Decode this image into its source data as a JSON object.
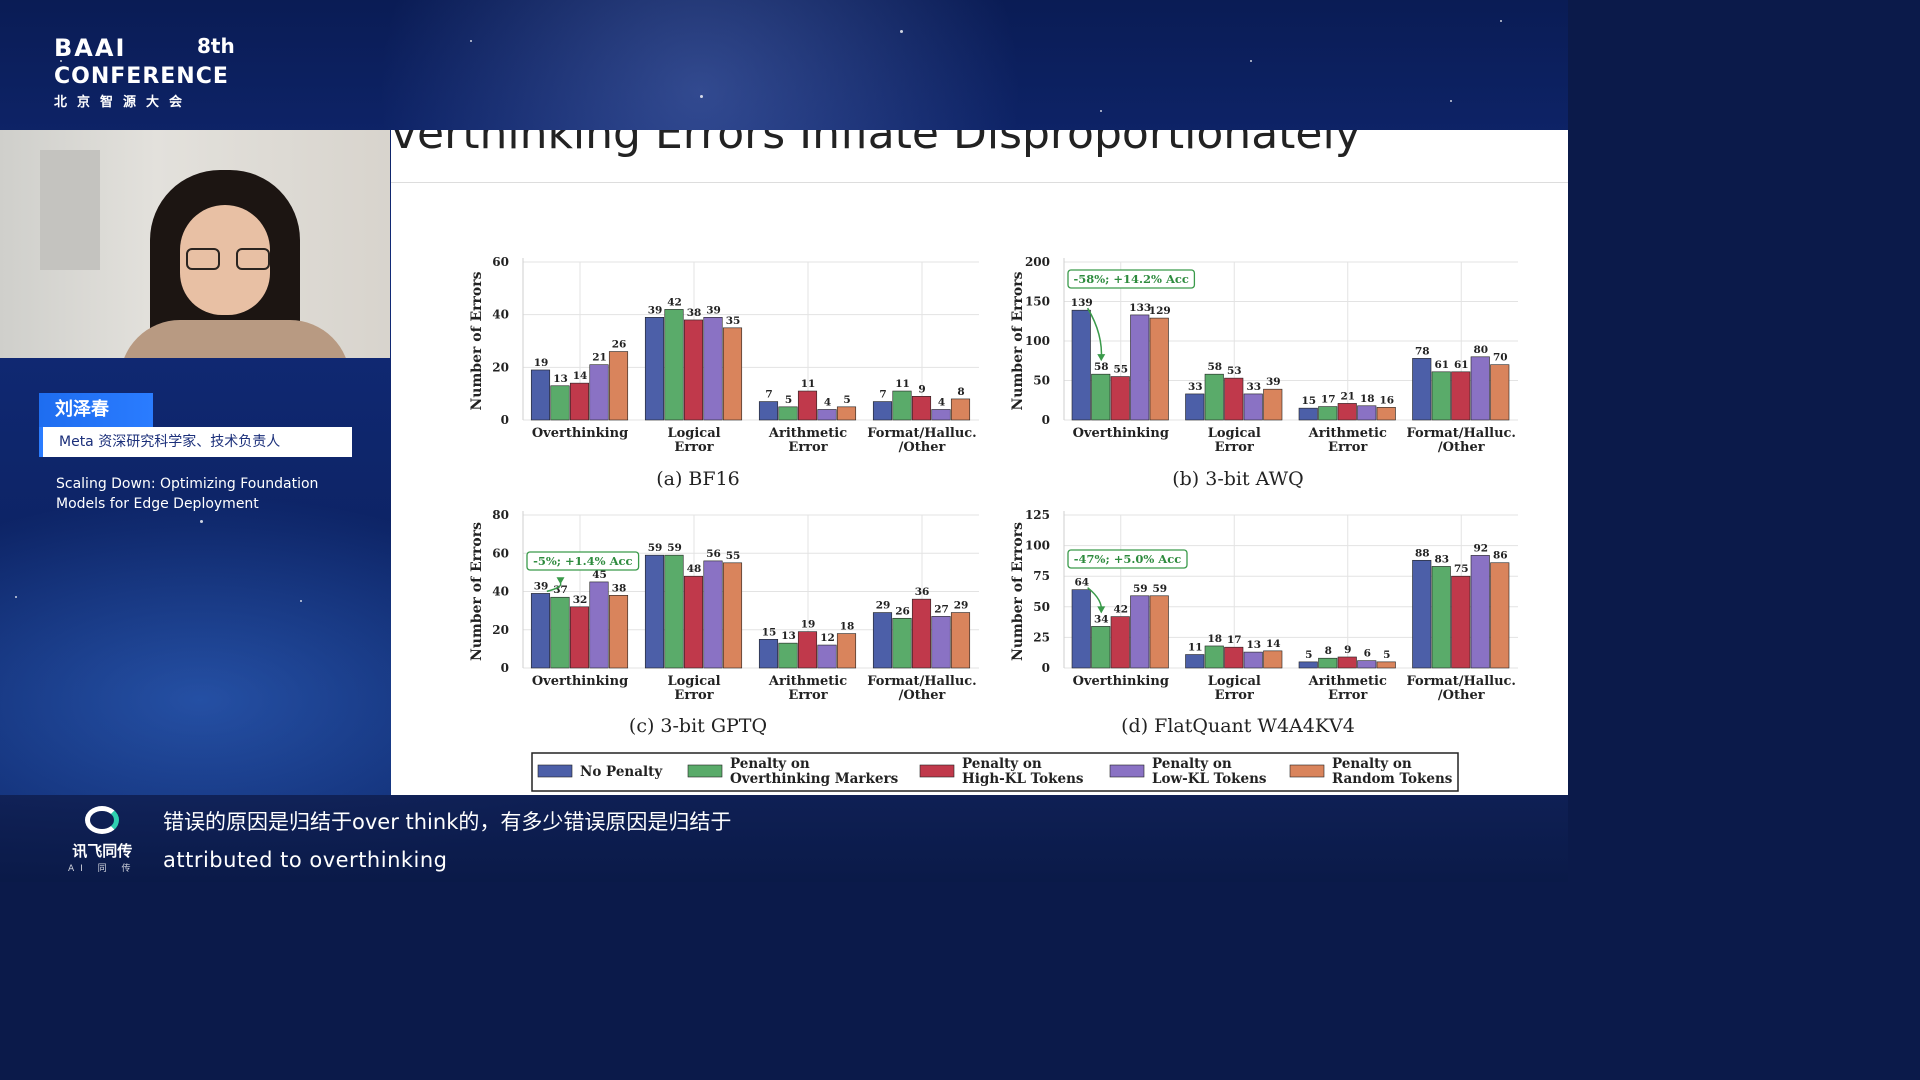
{
  "conference": {
    "brand": "BAAI",
    "edition": "8th",
    "name": "CONFERENCE",
    "cn": "北京智源大会"
  },
  "speaker": {
    "name": "刘泽春",
    "title": "Meta 资深研究科学家、技术负责人",
    "talk": "Scaling Down: Optimizing Foundation Models for Edge Deployment"
  },
  "slide": {
    "title": "verthinking Errors Inflate Disproportionately"
  },
  "subtitles": {
    "cn": "错误的原因是归结于over think的，有多少错误原因是归结于",
    "en": "attributed to overthinking"
  },
  "sub_logo": {
    "name": "讯飞同传",
    "tag": "AI 同 传"
  },
  "colors": {
    "no_penalty": "#4c5fa8",
    "overthinking_markers": "#5aab6a",
    "high_kl": "#c0394b",
    "low_kl": "#8a72c4",
    "random": "#d9845c"
  },
  "chart_data": [
    {
      "type": "bar",
      "caption": "(a)  BF16",
      "ylabel": "Number of Errors",
      "ylim": [
        0,
        60
      ],
      "yticks": [
        0,
        20,
        40,
        60
      ],
      "categories": [
        "Overthinking",
        "Logical\nError",
        "Arithmetic\nError",
        "Format/Halluc.\n/Other"
      ],
      "series": [
        {
          "name": "No Penalty",
          "values": [
            19,
            39,
            7,
            7
          ]
        },
        {
          "name": "Penalty on Overthinking Markers",
          "values": [
            13,
            42,
            5,
            11
          ]
        },
        {
          "name": "Penalty on High-KL Tokens",
          "values": [
            14,
            38,
            11,
            9
          ]
        },
        {
          "name": "Penalty on Low-KL Tokens",
          "values": [
            21,
            39,
            4,
            4
          ]
        },
        {
          "name": "Penalty on Random Tokens",
          "values": [
            26,
            35,
            5,
            8
          ]
        }
      ],
      "annotation": ""
    },
    {
      "type": "bar",
      "caption": "(b)  3-bit AWQ",
      "ylabel": "Number of Errors",
      "ylim": [
        0,
        200
      ],
      "yticks": [
        0,
        50,
        100,
        150,
        200
      ],
      "categories": [
        "Overthinking",
        "Logical\nError",
        "Arithmetic\nError",
        "Format/Halluc.\n/Other"
      ],
      "series": [
        {
          "name": "No Penalty",
          "values": [
            139,
            33,
            15,
            78
          ]
        },
        {
          "name": "Penalty on Overthinking Markers",
          "values": [
            58,
            58,
            17,
            61
          ]
        },
        {
          "name": "Penalty on High-KL Tokens",
          "values": [
            55,
            53,
            21,
            61
          ]
        },
        {
          "name": "Penalty on Low-KL Tokens",
          "values": [
            133,
            33,
            18,
            80
          ]
        },
        {
          "name": "Penalty on Random Tokens",
          "values": [
            129,
            39,
            16,
            70
          ]
        }
      ],
      "annotation": "-58%; +14.2% Acc"
    },
    {
      "type": "bar",
      "caption": "(c)  3-bit GPTQ",
      "ylabel": "Number of Errors",
      "ylim": [
        0,
        80
      ],
      "yticks": [
        0,
        20,
        40,
        60,
        80
      ],
      "categories": [
        "Overthinking",
        "Logical\nError",
        "Arithmetic\nError",
        "Format/Halluc.\n/Other"
      ],
      "series": [
        {
          "name": "No Penalty",
          "values": [
            39,
            59,
            15,
            29
          ]
        },
        {
          "name": "Penalty on Overthinking Markers",
          "values": [
            37,
            59,
            13,
            26
          ]
        },
        {
          "name": "Penalty on High-KL Tokens",
          "values": [
            32,
            48,
            19,
            36
          ]
        },
        {
          "name": "Penalty on Low-KL Tokens",
          "values": [
            45,
            56,
            12,
            27
          ]
        },
        {
          "name": "Penalty on Random Tokens",
          "values": [
            38,
            55,
            18,
            29
          ]
        }
      ],
      "annotation": "-5%; +1.4% Acc"
    },
    {
      "type": "bar",
      "caption": "(d)  FlatQuant W4A4KV4",
      "ylabel": "Number of Errors",
      "ylim": [
        0,
        125
      ],
      "yticks": [
        0,
        25,
        50,
        75,
        100,
        125
      ],
      "categories": [
        "Overthinking",
        "Logical\nError",
        "Arithmetic\nError",
        "Format/Halluc.\n/Other"
      ],
      "series": [
        {
          "name": "No Penalty",
          "values": [
            64,
            11,
            5,
            88
          ]
        },
        {
          "name": "Penalty on Overthinking Markers",
          "values": [
            34,
            18,
            8,
            83
          ]
        },
        {
          "name": "Penalty on High-KL Tokens",
          "values": [
            42,
            17,
            9,
            75
          ]
        },
        {
          "name": "Penalty on Low-KL Tokens",
          "values": [
            59,
            13,
            6,
            92
          ]
        },
        {
          "name": "Penalty on Random Tokens",
          "values": [
            59,
            14,
            5,
            86
          ]
        }
      ],
      "annotation": "-47%; +5.0% Acc"
    }
  ],
  "legend": [
    {
      "line1": "No Penalty",
      "line2": ""
    },
    {
      "line1": "Penalty on",
      "line2": "Overthinking Markers"
    },
    {
      "line1": "Penalty on",
      "line2": "High-KL Tokens"
    },
    {
      "line1": "Penalty on",
      "line2": "Low-KL Tokens"
    },
    {
      "line1": "Penalty on",
      "line2": "Random Tokens"
    }
  ]
}
